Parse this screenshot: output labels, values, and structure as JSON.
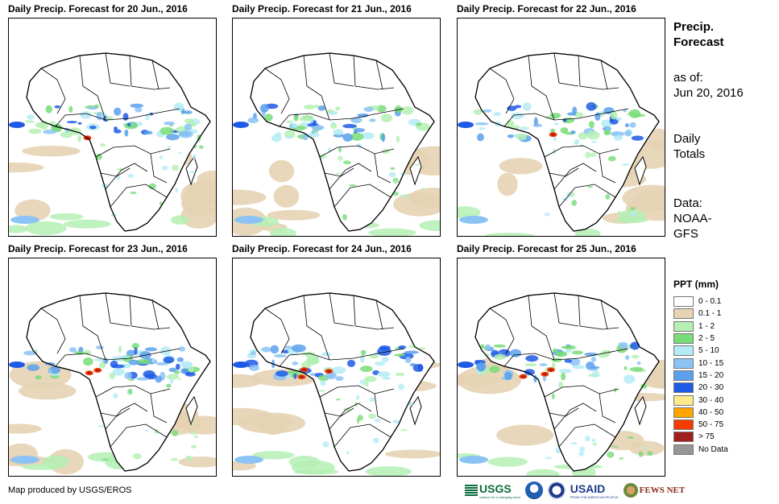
{
  "panels": [
    {
      "title": "Daily Precip. Forecast for 20 Jun., 2016",
      "seed": 11,
      "heavy": 1
    },
    {
      "title": "Daily Precip. Forecast for 21 Jun., 2016",
      "seed": 23,
      "heavy": 0
    },
    {
      "title": "Daily Precip. Forecast for 22 Jun., 2016",
      "seed": 37,
      "heavy": 1
    },
    {
      "title": "Daily Precip. Forecast for 23 Jun., 2016",
      "seed": 41,
      "heavy": 2
    },
    {
      "title": "Daily Precip. Forecast for 24 Jun., 2016",
      "seed": 53,
      "heavy": 3
    },
    {
      "title": "Daily Precip. Forecast for 25 Jun., 2016",
      "seed": 67,
      "heavy": 3
    }
  ],
  "sidebar": {
    "title_line1": "Precip.",
    "title_line2": "Forecast",
    "asof_label": "as of:",
    "asof_date": "Jun 20, 2016",
    "daily_line1": "Daily",
    "daily_line2": "Totals",
    "data_line1": "Data:",
    "data_line2": "NOAA-",
    "data_line3": "GFS"
  },
  "legend": {
    "title": "PPT (mm)",
    "items": [
      {
        "label": "0 - 0.1",
        "color": "#ffffff"
      },
      {
        "label": "0.1 - 1",
        "color": "#e6d3b3"
      },
      {
        "label": "1 - 2",
        "color": "#b4f0b4"
      },
      {
        "label": "2 - 5",
        "color": "#78dc78"
      },
      {
        "label": "5 - 10",
        "color": "#b4ebf5"
      },
      {
        "label": "10 - 15",
        "color": "#8cc3f5"
      },
      {
        "label": "15 - 20",
        "color": "#5aa0eb"
      },
      {
        "label": "20 - 30",
        "color": "#1e5ae6"
      },
      {
        "label": "30 - 40",
        "color": "#ffeb8c"
      },
      {
        "label": "40 - 50",
        "color": "#ffa500"
      },
      {
        "label": "50 - 75",
        "color": "#f53c00"
      },
      {
        "label": "> 75",
        "color": "#a01e1e"
      },
      {
        "label": "No Data",
        "color": "#969696"
      }
    ]
  },
  "credit": "Map produced by USGS/EROS",
  "logos": {
    "usgs": "USGS",
    "usgs_tagline": "science for a changing world",
    "usaid": "USAID",
    "usaid_tagline": "FROM THE AMERICAN PEOPLE",
    "fews": "FEWS NET"
  }
}
